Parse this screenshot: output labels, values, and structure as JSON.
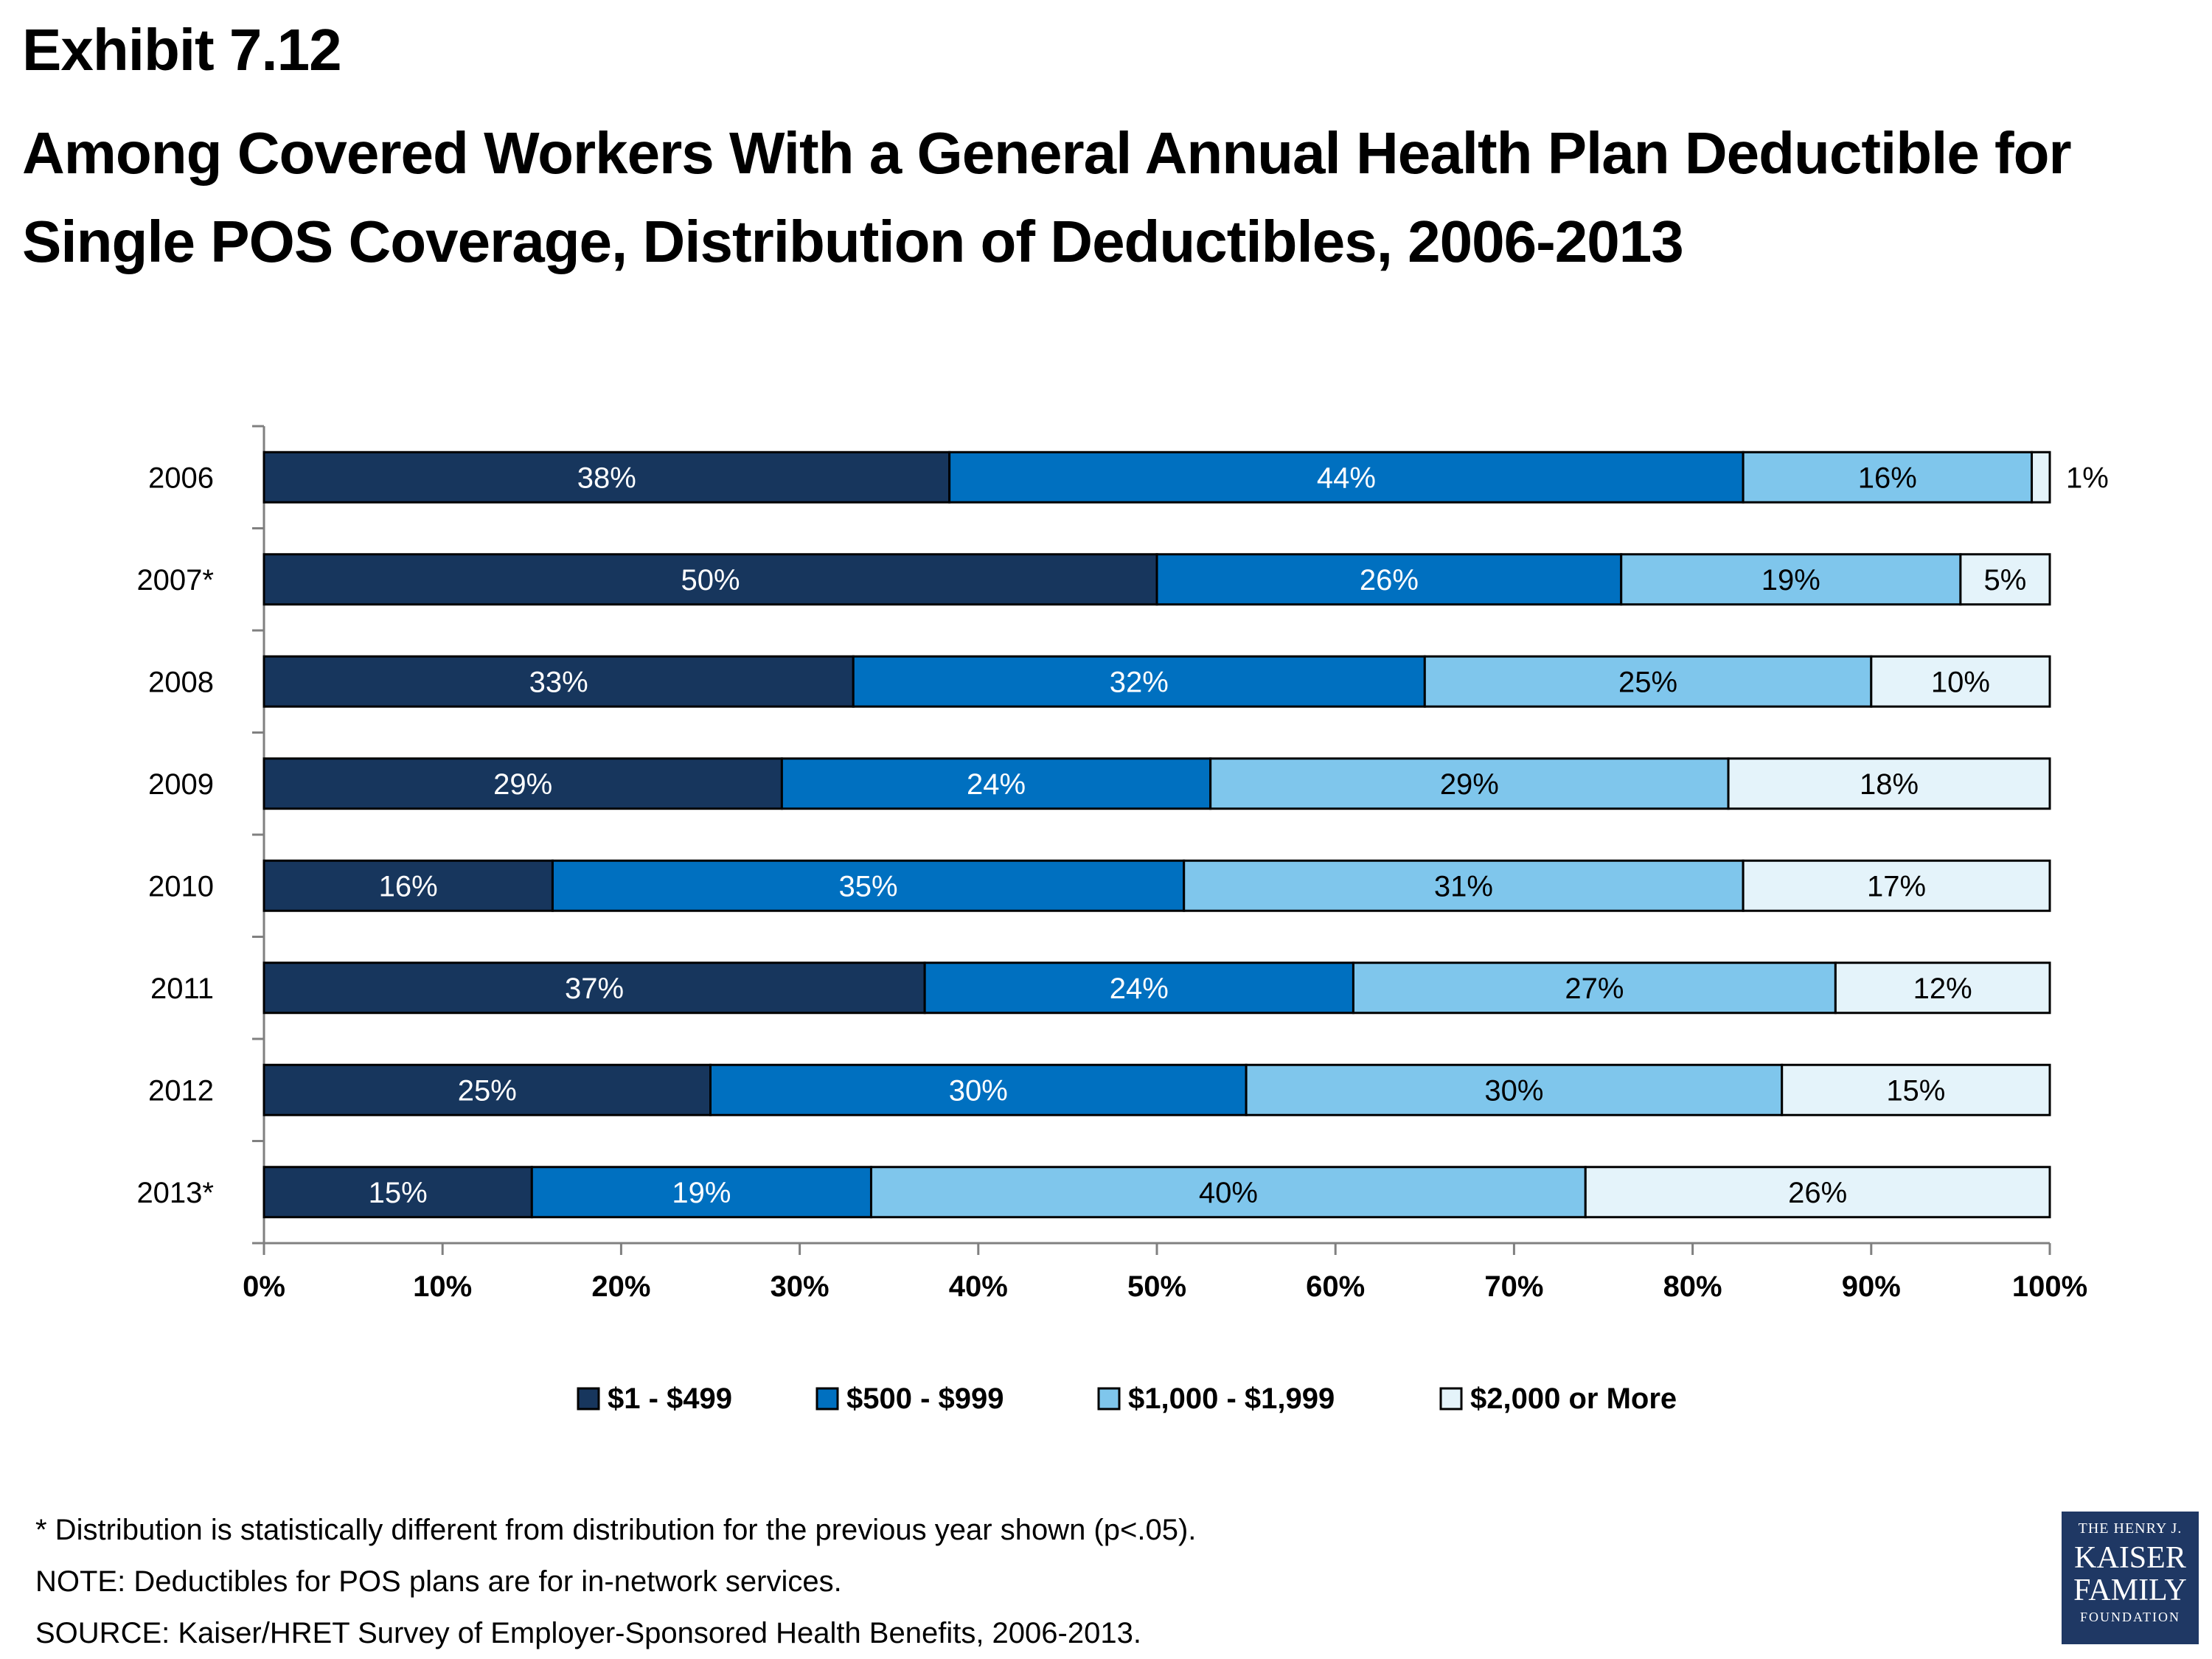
{
  "header": {
    "exhibit": "Exhibit 7.12",
    "title": "Among Covered Workers With a General Annual Health Plan Deductible for Single POS Coverage, Distribution of Deductibles, 2006-2013"
  },
  "chart_data": {
    "type": "bar",
    "orientation": "horizontal",
    "stacked": true,
    "categories": [
      "2006",
      "2007*",
      "2008",
      "2009",
      "2010",
      "2011",
      "2012",
      "2013*"
    ],
    "series": [
      {
        "name": "$1 - $499",
        "color": "#17365d",
        "values": [
          38,
          50,
          33,
          29,
          16,
          37,
          25,
          15
        ],
        "labels": [
          "38%",
          "50%",
          "33%",
          "29%",
          "16%",
          "37%",
          "25%",
          "15%"
        ]
      },
      {
        "name": "$500 - $999",
        "color": "#0070c0",
        "values": [
          44,
          26,
          32,
          24,
          35,
          24,
          30,
          19
        ],
        "labels": [
          "44%",
          "26%",
          "32%",
          "24%",
          "35%",
          "24%",
          "30%",
          "19%"
        ]
      },
      {
        "name": "$1,000 - $1,999",
        "color": "#7fc6ec",
        "values": [
          16,
          19,
          25,
          29,
          31,
          27,
          30,
          40
        ],
        "labels": [
          "16%",
          "19%",
          "25%",
          "29%",
          "31%",
          "27%",
          "30%",
          "40%"
        ]
      },
      {
        "name": "$2,000 or More",
        "color": "#e4f3fa",
        "values": [
          1,
          5,
          10,
          18,
          17,
          12,
          15,
          26
        ],
        "labels": [
          "1%",
          "5%",
          "10%",
          "18%",
          "17%",
          "12%",
          "15%",
          "26%"
        ]
      }
    ],
    "xlim": [
      0,
      100
    ],
    "xticks": [
      "0%",
      "10%",
      "20%",
      "30%",
      "40%",
      "50%",
      "60%",
      "70%",
      "80%",
      "90%",
      "100%"
    ],
    "legend_position": "bottom",
    "grid": false
  },
  "notes": {
    "footnote": "* Distribution is statistically different from distribution for the previous year shown (p<.05).",
    "note": "NOTE: Deductibles for POS plans are for in-network services.",
    "source": "SOURCE: Kaiser/HRET Survey of Employer-Sponsored Health Benefits, 2006-2013."
  },
  "logo": {
    "line1": "THE HENRY J.",
    "line2": "KAISER",
    "line3": "FAMILY",
    "line4": "FOUNDATION"
  }
}
